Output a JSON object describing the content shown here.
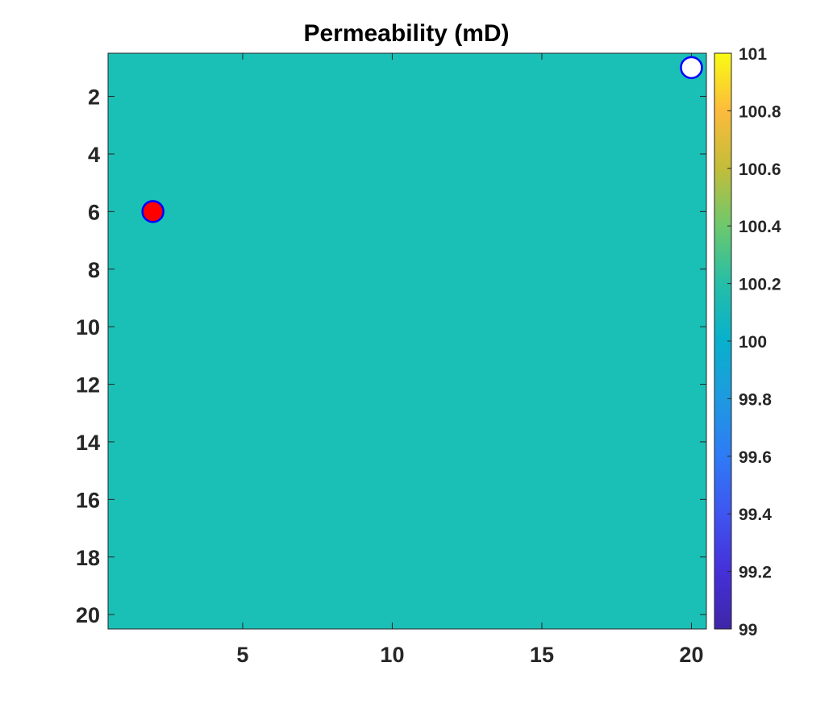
{
  "chart_data": {
    "type": "heatmap",
    "title": "Permeability (mD)",
    "xlabel": "",
    "ylabel": "",
    "grid": {
      "rows": 20,
      "cols": 20,
      "uniform_value": 100
    },
    "xlim": [
      0.5,
      20.5
    ],
    "ylim": [
      0.5,
      20.5
    ],
    "y_direction": "reversed",
    "x_ticks": [
      5,
      10,
      15,
      20
    ],
    "x_tick_labels": [
      "5",
      "10",
      "15",
      "20"
    ],
    "y_ticks": [
      2,
      4,
      6,
      8,
      10,
      12,
      14,
      16,
      18,
      20
    ],
    "y_tick_labels": [
      "2",
      "4",
      "6",
      "8",
      "10",
      "12",
      "14",
      "16",
      "18",
      "20"
    ],
    "colorbar": {
      "range": [
        99,
        101
      ],
      "ticks": [
        99,
        99.2,
        99.4,
        99.6,
        99.8,
        100,
        100.2,
        100.4,
        100.6,
        100.8,
        101
      ],
      "tick_labels": [
        "99",
        "99.2",
        "99.4",
        "99.6",
        "99.8",
        "100",
        "100.2",
        "100.4",
        "100.6",
        "100.8",
        "101"
      ],
      "colormap": "parula",
      "placement": "right"
    },
    "markers": [
      {
        "name": "",
        "x": 2,
        "y": 6,
        "fill": "#ff0000",
        "edge": "#0000ff"
      },
      {
        "name": "",
        "x": 20,
        "y": 1,
        "fill": "#ffffff",
        "edge": "#0000ff"
      }
    ],
    "field_color": "#1abfb5"
  }
}
